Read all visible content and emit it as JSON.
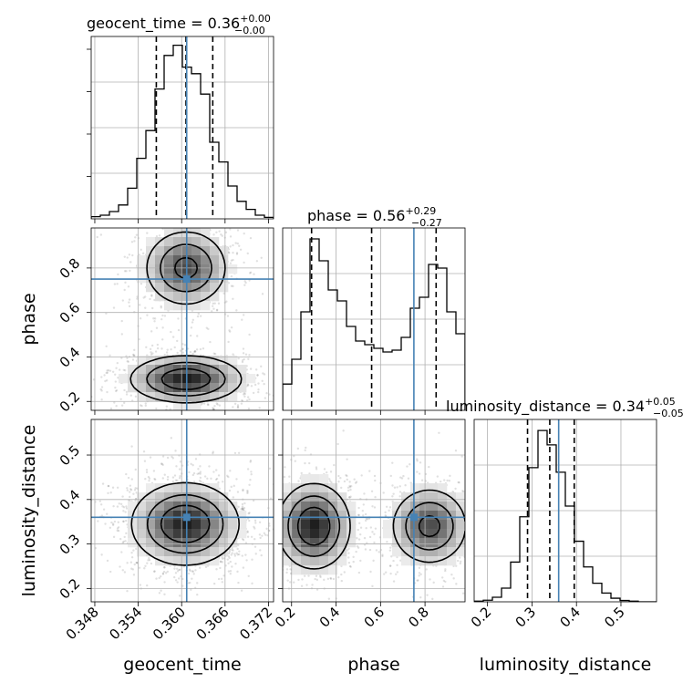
{
  "colors": {
    "truth": "#4682b4",
    "line": "#000000",
    "grid": "#b0b0b0"
  },
  "parameters": [
    "geocent_time",
    "phase",
    "luminosity_distance"
  ],
  "titles": {
    "geocent_time": {
      "name": "geocent_time",
      "median": "0.36",
      "plus": "+0.00",
      "minus": "−0.00"
    },
    "phase": {
      "name": "phase",
      "median": "0.56",
      "plus": "+0.29",
      "minus": "−0.27"
    },
    "luminosity_distance": {
      "name": "luminosity_distance",
      "median": "0.34",
      "plus": "+0.05",
      "minus": "−0.05"
    }
  },
  "chart_data": {
    "type": "corner",
    "grid": true,
    "axes": {
      "geocent_time": {
        "range": [
          0.3475,
          0.3727
        ],
        "ticks": [
          "0.348",
          "0.354",
          "0.360",
          "0.366",
          "0.372"
        ],
        "tick_values": [
          0.348,
          0.354,
          0.36,
          0.366,
          0.372
        ],
        "label": "geocent_time"
      },
      "phase": {
        "range": [
          0.16,
          0.98
        ],
        "ticks": [
          "0.2",
          "0.4",
          "0.6",
          "0.8"
        ],
        "tick_values": [
          0.2,
          0.4,
          0.6,
          0.8
        ],
        "label": "phase"
      },
      "luminosity_distance": {
        "range": [
          0.17,
          0.58
        ],
        "ticks": [
          "0.2",
          "0.3",
          "0.4",
          "0.5"
        ],
        "tick_values": [
          0.2,
          0.3,
          0.4,
          0.5
        ],
        "label": "luminosity_distance"
      }
    },
    "truths": {
      "geocent_time": 0.3607,
      "phase": 0.75,
      "luminosity_distance": 0.36
    },
    "quantiles": {
      "geocent_time": [
        0.3565,
        0.3606,
        0.3643
      ],
      "phase": [
        0.29,
        0.56,
        0.85
      ],
      "luminosity_distance": [
        0.29,
        0.34,
        0.395
      ]
    },
    "histograms": {
      "geocent_time": {
        "edges": [
          0.3475,
          0.34876,
          0.35002,
          0.35128,
          0.35254,
          0.3538,
          0.35506,
          0.35632,
          0.35758,
          0.35884,
          0.3601,
          0.36136,
          0.36262,
          0.36388,
          0.36514,
          0.3664,
          0.36766,
          0.36892,
          0.37018,
          0.37144,
          0.3727
        ],
        "counts": [
          3,
          5,
          10,
          19,
          42,
          83,
          121,
          178,
          224,
          238,
          208,
          199,
          171,
          105,
          78,
          45,
          24,
          13,
          5,
          2
        ],
        "ymax": 250
      },
      "phase": {
        "edges": [
          0.16,
          0.201,
          0.242,
          0.283,
          0.324,
          0.365,
          0.406,
          0.447,
          0.488,
          0.529,
          0.57,
          0.611,
          0.652,
          0.693,
          0.734,
          0.775,
          0.816,
          0.857,
          0.898,
          0.939,
          0.98
        ],
        "counts": [
          72,
          140,
          270,
          470,
          410,
          330,
          300,
          230,
          190,
          180,
          170,
          160,
          165,
          200,
          280,
          310,
          400,
          390,
          270,
          210
        ],
        "ymax": 500
      },
      "luminosity_distance": {
        "edges": [
          0.17,
          0.1905,
          0.211,
          0.2315,
          0.252,
          0.2725,
          0.293,
          0.3135,
          0.334,
          0.3545,
          0.375,
          0.3955,
          0.416,
          0.4365,
          0.457,
          0.4775,
          0.498,
          0.5185,
          0.539,
          0.5595,
          0.58
        ],
        "counts": [
          2,
          5,
          14,
          42,
          122,
          261,
          412,
          526,
          482,
          398,
          294,
          186,
          107,
          57,
          27,
          11,
          4,
          2,
          0,
          0
        ],
        "ymax": 560
      }
    },
    "pairs": [
      {
        "x": "geocent_time",
        "y": "phase",
        "blobs": [
          {
            "cx": 0.3606,
            "cy": 0.8,
            "sx": 0.003,
            "sy": 0.09,
            "w": 1.0
          },
          {
            "cx": 0.3606,
            "cy": 0.3,
            "sx": 0.004,
            "sy": 0.055,
            "w": 1.25
          }
        ],
        "contour_levels": [
          0.16,
          0.4,
          0.7
        ]
      },
      {
        "x": "geocent_time",
        "y": "luminosity_distance",
        "blobs": [
          {
            "cx": 0.3605,
            "cy": 0.345,
            "sx": 0.0036,
            "sy": 0.045,
            "w": 1.0
          }
        ],
        "contour_levels": [
          0.12,
          0.35,
          0.65
        ]
      },
      {
        "x": "phase",
        "y": "luminosity_distance",
        "blobs": [
          {
            "cx": 0.3,
            "cy": 0.34,
            "sx": 0.085,
            "sy": 0.05,
            "w": 1.25
          },
          {
            "cx": 0.82,
            "cy": 0.34,
            "sx": 0.09,
            "sy": 0.045,
            "w": 1.0
          }
        ],
        "contour_levels": [
          0.16,
          0.4,
          0.7
        ]
      }
    ]
  }
}
